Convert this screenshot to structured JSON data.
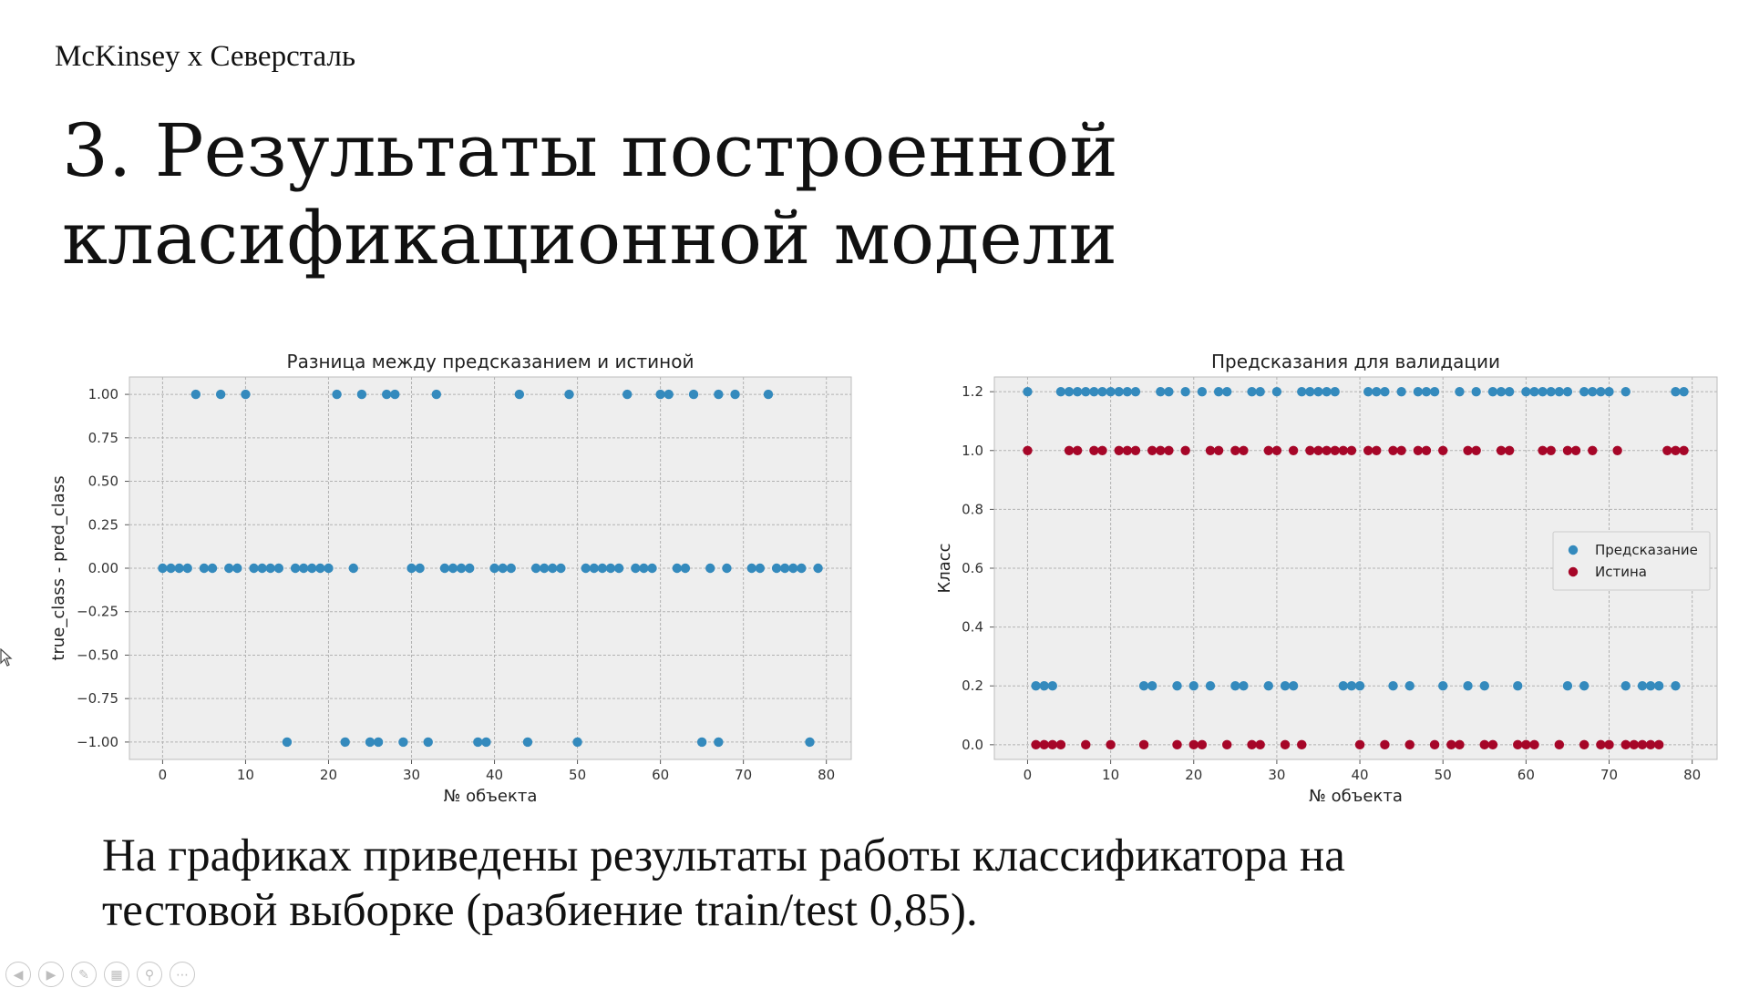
{
  "brand": "McKinsey  x  Северсталь",
  "title": [
    "3. Результаты построенной",
    "класификационной модели"
  ],
  "caption": [
    "На графиках приведены результаты работы классификатора на",
    "тестовой выборке (разбиение train/test 0,85)."
  ],
  "colors": {
    "prediction": "#348ABD",
    "truth": "#A60628",
    "plot_bg": "#EEEEEE",
    "grid": "#B2B2B2"
  },
  "toolbar": [
    "prev-icon",
    "next-icon",
    "pen-icon",
    "slides-icon",
    "zoom-icon",
    "more-icon"
  ],
  "chart_data": [
    {
      "type": "scatter",
      "title": "Разница между предсказанием и истиной",
      "xlabel": "№ объекта",
      "ylabel": "true_class - pred_class",
      "xlim": [
        -4,
        83
      ],
      "ylim": [
        -1.1,
        1.1
      ],
      "xticks": [
        0,
        10,
        20,
        30,
        40,
        50,
        60,
        70,
        80
      ],
      "yticks": [
        -1.0,
        -0.75,
        -0.5,
        -0.25,
        0.0,
        0.25,
        0.5,
        0.75,
        1.0
      ],
      "ytick_labels": [
        "−1.00",
        "−0.75",
        "−0.50",
        "−0.25",
        "0.00",
        "0.25",
        "0.50",
        "0.75",
        "1.00"
      ],
      "grid": true,
      "series": [
        {
          "color": "#348ABD",
          "x": [
            4,
            7,
            10,
            21,
            24,
            27,
            28,
            33,
            43,
            49,
            56,
            60,
            61,
            64,
            67,
            69,
            73,
            0,
            1,
            2,
            3,
            5,
            6,
            8,
            9,
            11,
            12,
            13,
            14,
            16,
            17,
            18,
            19,
            20,
            23,
            30,
            31,
            34,
            35,
            36,
            37,
            40,
            41,
            42,
            45,
            46,
            47,
            48,
            51,
            52,
            53,
            54,
            55,
            57,
            58,
            59,
            62,
            63,
            66,
            68,
            71,
            72,
            74,
            75,
            76,
            77,
            79,
            15,
            22,
            25,
            26,
            29,
            32,
            38,
            39,
            44,
            50,
            65,
            67,
            78
          ],
          "y": [
            1,
            1,
            1,
            1,
            1,
            1,
            1,
            1,
            1,
            1,
            1,
            1,
            1,
            1,
            1,
            1,
            1,
            0,
            0,
            0,
            0,
            0,
            0,
            0,
            0,
            0,
            0,
            0,
            0,
            0,
            0,
            0,
            0,
            0,
            0,
            0,
            0,
            0,
            0,
            0,
            0,
            0,
            0,
            0,
            0,
            0,
            0,
            0,
            0,
            0,
            0,
            0,
            0,
            0,
            0,
            0,
            0,
            0,
            0,
            0,
            0,
            0,
            0,
            0,
            0,
            0,
            0,
            -1,
            -1,
            -1,
            -1,
            -1,
            -1,
            -1,
            -1,
            -1,
            -1,
            -1,
            -1,
            -1
          ]
        }
      ]
    },
    {
      "type": "scatter",
      "title": "Предсказания для валидации",
      "xlabel": "№ объекта",
      "ylabel": "Класс",
      "xlim": [
        -4,
        83
      ],
      "ylim": [
        -0.05,
        1.25
      ],
      "xticks": [
        0,
        10,
        20,
        30,
        40,
        50,
        60,
        70,
        80
      ],
      "yticks": [
        0.0,
        0.2,
        0.4,
        0.6,
        0.8,
        1.0,
        1.2
      ],
      "ytick_labels": [
        "0.0",
        "0.2",
        "0.4",
        "0.6",
        "0.8",
        "1.0",
        "1.2"
      ],
      "grid": true,
      "legend": "center-right",
      "series": [
        {
          "name": "Предсказание",
          "color": "#348ABD",
          "x": [
            0,
            4,
            5,
            6,
            7,
            8,
            9,
            10,
            11,
            12,
            13,
            16,
            17,
            19,
            21,
            23,
            24,
            27,
            28,
            30,
            33,
            34,
            35,
            36,
            37,
            41,
            42,
            43,
            45,
            47,
            48,
            49,
            52,
            54,
            56,
            57,
            58,
            60,
            61,
            62,
            63,
            64,
            65,
            67,
            68,
            69,
            70,
            72,
            78,
            79,
            1,
            2,
            3,
            14,
            15,
            18,
            20,
            22,
            25,
            26,
            29,
            31,
            32,
            38,
            39,
            40,
            44,
            46,
            50,
            53,
            55,
            59,
            65,
            67,
            72,
            74,
            75,
            76,
            78
          ],
          "y": [
            1.2,
            1.2,
            1.2,
            1.2,
            1.2,
            1.2,
            1.2,
            1.2,
            1.2,
            1.2,
            1.2,
            1.2,
            1.2,
            1.2,
            1.2,
            1.2,
            1.2,
            1.2,
            1.2,
            1.2,
            1.2,
            1.2,
            1.2,
            1.2,
            1.2,
            1.2,
            1.2,
            1.2,
            1.2,
            1.2,
            1.2,
            1.2,
            1.2,
            1.2,
            1.2,
            1.2,
            1.2,
            1.2,
            1.2,
            1.2,
            1.2,
            1.2,
            1.2,
            1.2,
            1.2,
            1.2,
            1.2,
            1.2,
            1.2,
            1.2,
            0.2,
            0.2,
            0.2,
            0.2,
            0.2,
            0.2,
            0.2,
            0.2,
            0.2,
            0.2,
            0.2,
            0.2,
            0.2,
            0.2,
            0.2,
            0.2,
            0.2,
            0.2,
            0.2,
            0.2,
            0.2,
            0.2,
            0.2,
            0.2,
            0.2,
            0.2,
            0.2,
            0.2,
            0.2
          ]
        },
        {
          "name": "Истина",
          "color": "#A60628",
          "x": [
            0,
            5,
            6,
            8,
            9,
            11,
            12,
            13,
            15,
            16,
            17,
            19,
            22,
            23,
            25,
            26,
            29,
            30,
            32,
            34,
            35,
            36,
            37,
            38,
            39,
            41,
            42,
            44,
            45,
            47,
            48,
            50,
            53,
            54,
            57,
            58,
            62,
            63,
            65,
            66,
            68,
            71,
            77,
            78,
            79,
            1,
            2,
            3,
            4,
            7,
            10,
            14,
            18,
            20,
            21,
            24,
            27,
            28,
            31,
            33,
            40,
            43,
            46,
            49,
            51,
            52,
            55,
            56,
            59,
            60,
            61,
            64,
            67,
            69,
            70,
            72,
            73,
            74,
            75,
            76
          ],
          "y": [
            1,
            1,
            1,
            1,
            1,
            1,
            1,
            1,
            1,
            1,
            1,
            1,
            1,
            1,
            1,
            1,
            1,
            1,
            1,
            1,
            1,
            1,
            1,
            1,
            1,
            1,
            1,
            1,
            1,
            1,
            1,
            1,
            1,
            1,
            1,
            1,
            1,
            1,
            1,
            1,
            1,
            1,
            1,
            1,
            1,
            0,
            0,
            0,
            0,
            0,
            0,
            0,
            0,
            0,
            0,
            0,
            0,
            0,
            0,
            0,
            0,
            0,
            0,
            0,
            0,
            0,
            0,
            0,
            0,
            0,
            0,
            0,
            0,
            0,
            0,
            0,
            0,
            0,
            0,
            0
          ]
        }
      ]
    }
  ]
}
